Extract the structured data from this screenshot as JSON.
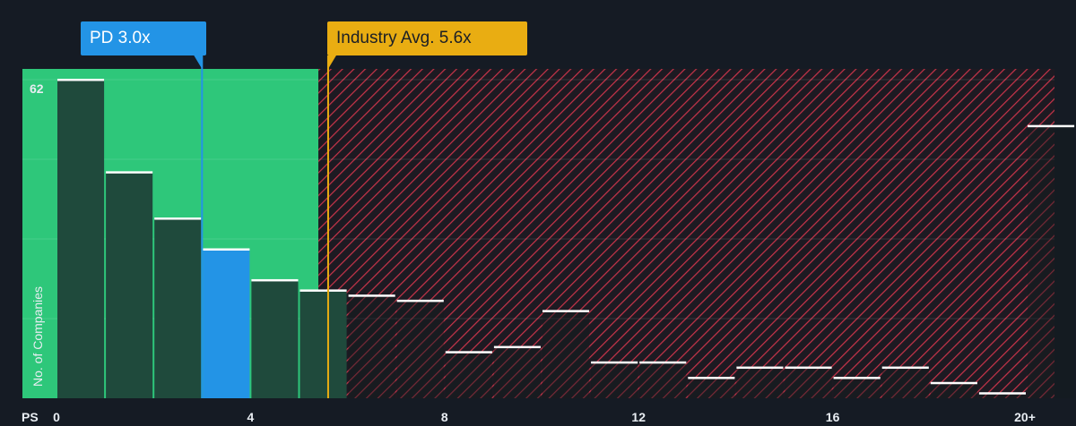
{
  "chart_data": {
    "type": "bar",
    "x_label_prefix": "PS",
    "ylabel": "No. of Companies",
    "y_tick_labels": [
      "62"
    ],
    "x_tick_labels": [
      "0",
      "4",
      "8",
      "12",
      "16",
      "20+"
    ],
    "x_tick_values": [
      0,
      4,
      8,
      12,
      16,
      20
    ],
    "xlim": [
      0,
      20.5
    ],
    "ylim": [
      0,
      62
    ],
    "bins": [
      {
        "x0": 0,
        "x1": 1,
        "value": 62
      },
      {
        "x0": 1,
        "x1": 2,
        "value": 44
      },
      {
        "x0": 2,
        "x1": 3,
        "value": 35
      },
      {
        "x0": 3,
        "x1": 4,
        "value": 29
      },
      {
        "x0": 4,
        "x1": 5,
        "value": 23
      },
      {
        "x0": 5,
        "x1": 6,
        "value": 21
      },
      {
        "x0": 6,
        "x1": 7,
        "value": 20
      },
      {
        "x0": 7,
        "x1": 8,
        "value": 19
      },
      {
        "x0": 8,
        "x1": 9,
        "value": 9
      },
      {
        "x0": 9,
        "x1": 10,
        "value": 10
      },
      {
        "x0": 10,
        "x1": 11,
        "value": 17
      },
      {
        "x0": 11,
        "x1": 12,
        "value": 7
      },
      {
        "x0": 12,
        "x1": 13,
        "value": 7
      },
      {
        "x0": 13,
        "x1": 14,
        "value": 4
      },
      {
        "x0": 14,
        "x1": 15,
        "value": 6
      },
      {
        "x0": 15,
        "x1": 16,
        "value": 6
      },
      {
        "x0": 16,
        "x1": 17,
        "value": 4
      },
      {
        "x0": 17,
        "x1": 18,
        "value": 6
      },
      {
        "x0": 18,
        "x1": 19,
        "value": 3
      },
      {
        "x0": 19,
        "x1": 20,
        "value": 1
      },
      {
        "x0": 20,
        "x1": 21,
        "value": 53
      }
    ],
    "highlight_bin_index": 3,
    "company": {
      "label": "PD 3.0x",
      "value": 3.0
    },
    "industry": {
      "label": "Industry Avg. 5.6x",
      "value": 5.6
    },
    "fair_zone_end": 5.4,
    "colors": {
      "fair_zone": "#2ec77a",
      "bar_fill": "#1f4a3c",
      "highlight_bar": "#2394e6",
      "hatch": "#c9344a",
      "company_line": "#2394e6",
      "industry_line": "#e9ad12",
      "bar_top": "#ffffff"
    }
  }
}
